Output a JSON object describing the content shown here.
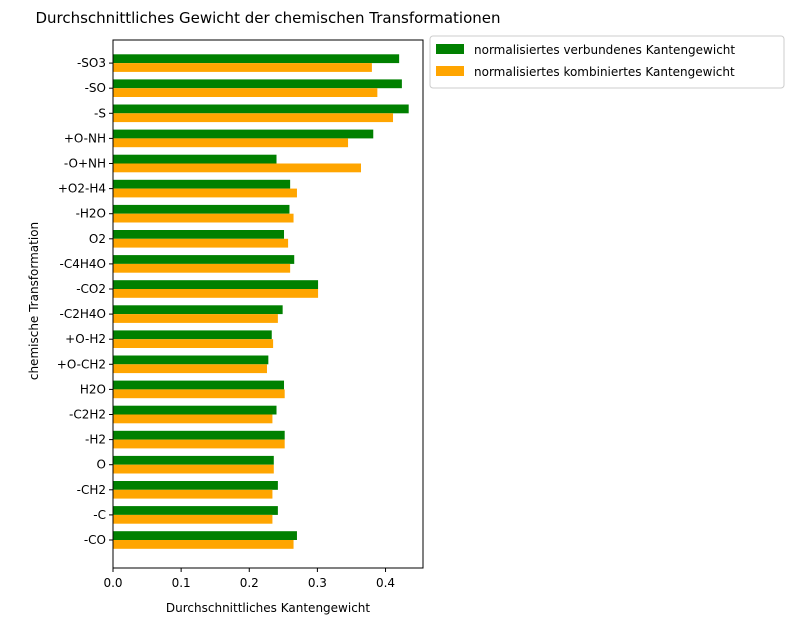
{
  "chart_data": {
    "type": "bar",
    "orientation": "horizontal",
    "title": "Durchschnittliches Gewicht der chemischen Transformationen",
    "xlabel": "Durchschnittliches Kantengewicht",
    "ylabel": "chemische Transformation",
    "xlim": [
      0,
      0.455
    ],
    "xticks": [
      "0.0",
      "0.1",
      "0.2",
      "0.3",
      "0.4"
    ],
    "grid": false,
    "legend_position": "outside-top-right",
    "categories": [
      "-CO",
      "-C",
      "-CH2",
      "O",
      "-H2",
      "-C2H2",
      "H2O",
      "+O-CH2",
      "+O-H2",
      "-C2H4O",
      "-CO2",
      "-C4H4O",
      "O2",
      "-H2O",
      "+O2-H4",
      "-O+NH",
      "+O-NH",
      "-S",
      "-SO",
      "-SO3"
    ],
    "series": [
      {
        "name": "normalisiertes verbundenes Kantengewicht",
        "color": "#008000",
        "values": [
          0.27,
          0.242,
          0.242,
          0.236,
          0.252,
          0.24,
          0.251,
          0.228,
          0.233,
          0.249,
          0.301,
          0.266,
          0.251,
          0.259,
          0.26,
          0.24,
          0.382,
          0.434,
          0.424,
          0.42
        ]
      },
      {
        "name": "normalisiertes kombiniertes Kantengewicht",
        "color": "#FFA500",
        "values": [
          0.265,
          0.234,
          0.234,
          0.236,
          0.252,
          0.234,
          0.252,
          0.226,
          0.235,
          0.242,
          0.301,
          0.26,
          0.257,
          0.265,
          0.27,
          0.364,
          0.345,
          0.411,
          0.388,
          0.38
        ]
      }
    ]
  }
}
